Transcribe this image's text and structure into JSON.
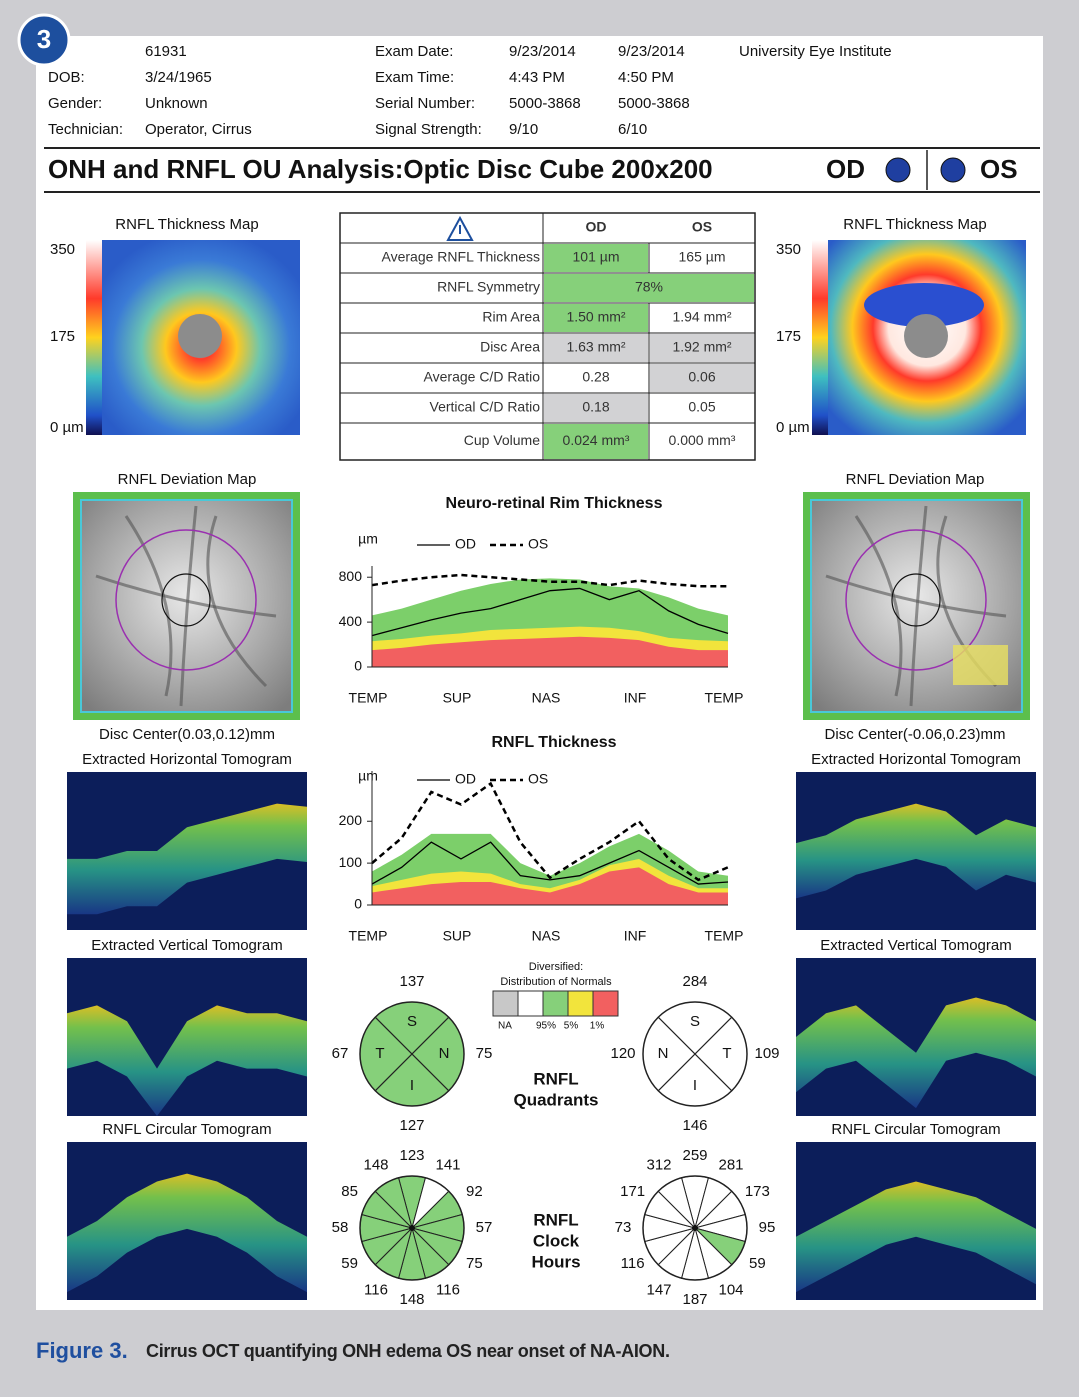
{
  "badge": "3",
  "patient": {
    "id": "61931",
    "fields": [
      {
        "label": "DOB:",
        "value": "3/24/1965"
      },
      {
        "label": "Gender:",
        "value": "Unknown"
      },
      {
        "label": "Technician:",
        "value": "Operator, Cirrus"
      }
    ]
  },
  "exam": {
    "fields": [
      {
        "label": "Exam Date:",
        "od": "9/23/2014",
        "os": "9/23/2014"
      },
      {
        "label": "Exam Time:",
        "od": "4:43 PM",
        "os": "4:50 PM"
      },
      {
        "label": "Serial Number:",
        "od": "5000-3868",
        "os": "5000-3868"
      },
      {
        "label": "Signal Strength:",
        "od": "9/10",
        "os": "6/10"
      }
    ],
    "institute": "University Eye Institute"
  },
  "title": "ONH and RNFL OU Analysis:Optic Disc Cube 200x200",
  "eyes": {
    "od": "OD",
    "os": "OS",
    "color": "#1f3fa0"
  },
  "sides": [
    {
      "thickness_map": {
        "title": "RNFL Thickness Map",
        "scale": [
          "350",
          "175",
          "0 µm"
        ]
      },
      "deviation_map": {
        "title": "RNFL Deviation Map",
        "disc_center": "Disc Center(0.03,0.12)mm"
      },
      "tomograms": [
        "Extracted Horizontal Tomogram",
        "Extracted Vertical Tomogram",
        "RNFL Circular Tomogram"
      ]
    },
    {
      "thickness_map": {
        "title": "RNFL Thickness Map",
        "scale": [
          "350",
          "175",
          "0 µm"
        ]
      },
      "deviation_map": {
        "title": "RNFL Deviation Map",
        "disc_center": "Disc Center(-0.06,0.23)mm"
      },
      "tomograms": [
        "Extracted Horizontal Tomogram",
        "Extracted Vertical Tomogram",
        "RNFL Circular Tomogram"
      ]
    }
  ],
  "table": {
    "headers": [
      "OD",
      "OS"
    ],
    "rows": [
      {
        "label": "Average RNFL Thickness",
        "cells": [
          {
            "text": "101 µm",
            "color": "#86d07a"
          },
          {
            "text": "165 µm",
            "color": "#ffffff"
          }
        ]
      },
      {
        "label": "RNFL Symmetry",
        "cells": [
          {
            "text": "78%",
            "color": "#86d07a"
          }
        ]
      },
      {
        "label": "Rim Area",
        "cells": [
          {
            "text": "1.50 mm²",
            "color": "#86d07a"
          },
          {
            "text": "1.94 mm²",
            "color": "#ffffff"
          }
        ]
      },
      {
        "label": "Disc Area",
        "cells": [
          {
            "text": "1.63 mm²",
            "color": "#d2d2d4"
          },
          {
            "text": "1.92 mm²",
            "color": "#d2d2d4"
          }
        ]
      },
      {
        "label": "Average C/D Ratio",
        "cells": [
          {
            "text": "0.28",
            "color": "#ffffff"
          },
          {
            "text": "0.06",
            "color": "#d2d2d4"
          }
        ]
      },
      {
        "label": "Vertical C/D Ratio",
        "cells": [
          {
            "text": "0.18",
            "color": "#d2d2d4"
          },
          {
            "text": "0.05",
            "color": "#ffffff"
          }
        ]
      },
      {
        "label": "Cup Volume",
        "cells": [
          {
            "text": "0.024 mm³",
            "color": "#86d07a"
          },
          {
            "text": "0.000 mm³",
            "color": "#ffffff"
          }
        ]
      }
    ]
  },
  "chart_data": [
    {
      "type": "line",
      "title": "Neuro-retinal Rim Thickness",
      "y_label": "µm",
      "categories": [
        "TEMP",
        null,
        null,
        "SUP",
        null,
        null,
        "NAS",
        null,
        null,
        "INF",
        null,
        null,
        "TEMP"
      ],
      "ylim": [
        0,
        900
      ],
      "yticks": [
        0,
        400,
        800
      ],
      "bands": [
        {
          "color": "#7ccf6a",
          "values": [
            460,
            520,
            600,
            680,
            740,
            780,
            790,
            780,
            720,
            700,
            620,
            520,
            460
          ]
        },
        {
          "color": "#f2e43c",
          "values": [
            230,
            250,
            280,
            300,
            330,
            340,
            350,
            360,
            350,
            320,
            260,
            240,
            230
          ]
        },
        {
          "color": "#f26060",
          "values": [
            150,
            170,
            200,
            220,
            240,
            250,
            260,
            270,
            260,
            240,
            180,
            150,
            150
          ]
        }
      ],
      "series": [
        {
          "name": "OD",
          "color": "#000000",
          "dashed": false,
          "values": [
            280,
            350,
            420,
            480,
            520,
            600,
            680,
            700,
            600,
            680,
            500,
            380,
            300
          ]
        },
        {
          "name": "OS",
          "color": "#000000",
          "dashed": true,
          "values": [
            730,
            770,
            800,
            820,
            800,
            780,
            760,
            760,
            730,
            770,
            740,
            720,
            720
          ]
        }
      ]
    },
    {
      "type": "line",
      "title": "RNFL Thickness",
      "y_label": "µm",
      "categories": [
        "TEMP",
        null,
        null,
        "SUP",
        null,
        null,
        "NAS",
        null,
        null,
        "INF",
        null,
        null,
        "TEMP"
      ],
      "ylim": [
        0,
        320
      ],
      "yticks": [
        0,
        100,
        200
      ],
      "bands": [
        {
          "color": "#7ccf6a",
          "values": [
            80,
            120,
            170,
            170,
            170,
            100,
            70,
            100,
            140,
            170,
            130,
            80,
            70
          ]
        },
        {
          "color": "#f2e43c",
          "values": [
            45,
            60,
            75,
            80,
            75,
            50,
            40,
            60,
            95,
            110,
            70,
            40,
            40
          ]
        },
        {
          "color": "#f26060",
          "values": [
            30,
            40,
            50,
            55,
            55,
            40,
            30,
            50,
            80,
            90,
            50,
            30,
            30
          ]
        }
      ],
      "series": [
        {
          "name": "OD",
          "color": "#000000",
          "dashed": false,
          "values": [
            50,
            90,
            150,
            110,
            150,
            70,
            60,
            70,
            100,
            130,
            90,
            50,
            55
          ]
        },
        {
          "name": "OS",
          "color": "#000000",
          "dashed": true,
          "values": [
            100,
            160,
            270,
            240,
            290,
            150,
            65,
            110,
            150,
            200,
            110,
            60,
            90
          ]
        }
      ]
    }
  ],
  "legend": {
    "title_lines": [
      "Diversified:",
      "Distribution of Normals"
    ],
    "colors": [
      "#c8c8c8",
      "#ffffff",
      "#86d07a",
      "#f2e43c",
      "#f26060"
    ],
    "labels": [
      "NA",
      "95%",
      "5%",
      "1%"
    ]
  },
  "quadrants": {
    "title_lines": [
      "RNFL",
      "Quadrants"
    ],
    "charts": [
      {
        "color": "#86d07a",
        "sectors": [
          {
            "letter": "S",
            "value": 137
          },
          {
            "letter": "T",
            "value": 67
          },
          {
            "letter": "N",
            "value": 75
          },
          {
            "letter": "I",
            "value": 127
          }
        ]
      },
      {
        "color": "#ffffff",
        "sectors": [
          {
            "letter": "S",
            "value": 284
          },
          {
            "letter": "N",
            "value": 120
          },
          {
            "letter": "T",
            "value": 109
          },
          {
            "letter": "I",
            "value": 146
          }
        ]
      }
    ]
  },
  "clock_hours": {
    "title_lines": [
      "RNFL",
      "Clock",
      "Hours"
    ],
    "charts": [
      {
        "values": [
          123,
          141,
          92,
          57,
          75,
          116,
          148,
          116,
          59,
          58,
          85,
          148
        ],
        "colors": [
          "#86d07a",
          "#ffffff",
          "#86d07a",
          "#86d07a",
          "#86d07a",
          "#86d07a",
          "#86d07a",
          "#86d07a",
          "#86d07a",
          "#86d07a",
          "#86d07a",
          "#86d07a"
        ]
      },
      {
        "values": [
          259,
          281,
          173,
          95,
          59,
          104,
          187,
          147,
          116,
          73,
          171,
          312
        ],
        "colors": [
          "#ffffff",
          "#ffffff",
          "#ffffff",
          "#ffffff",
          "#86d07a",
          "#ffffff",
          "#ffffff",
          "#ffffff",
          "#ffffff",
          "#ffffff",
          "#ffffff",
          "#ffffff"
        ]
      }
    ]
  },
  "caption": {
    "label": "Figure 3.",
    "text": "Cirrus OCT quantifying ONH edema OS near onset of NA-AION."
  }
}
